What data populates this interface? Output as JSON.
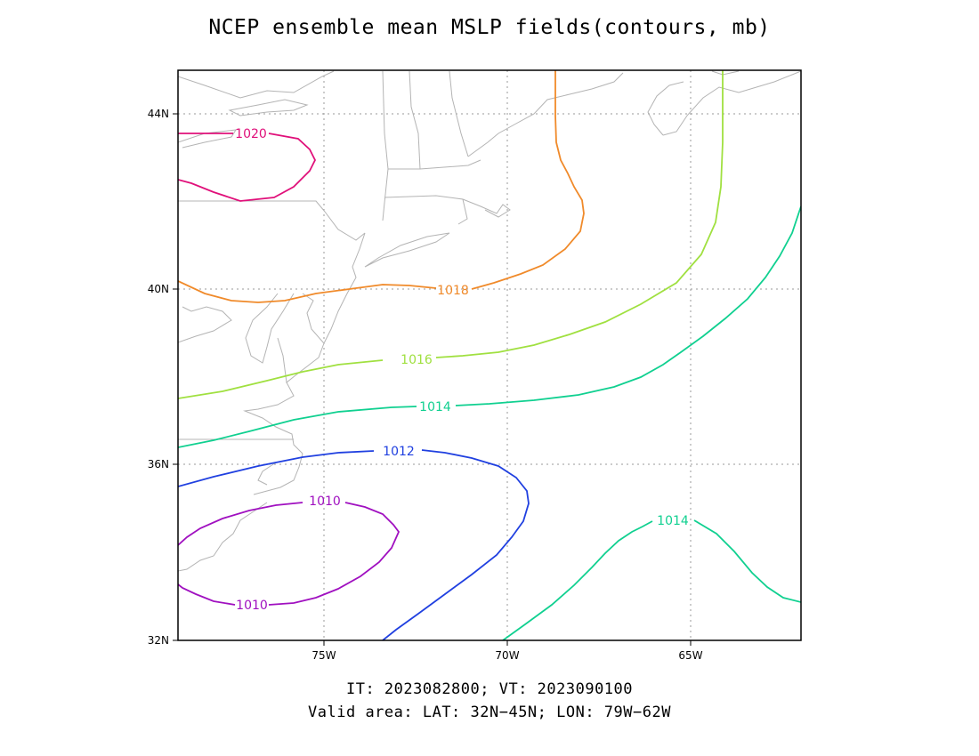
{
  "title": "NCEP ensemble mean MSLP fields(contours, mb)",
  "caption": {
    "line1": "IT: 2023082800; VT: 2023090100",
    "line2": "Valid area: LAT: 32N−45N; LON: 79W−62W"
  },
  "map": {
    "lat_ticks": [
      "32N",
      "36N",
      "40N",
      "44N"
    ],
    "lon_ticks": [
      "75W",
      "70W",
      "65W"
    ],
    "grid": "dotted",
    "coastline_color": "#b4b4b4"
  },
  "contours": [
    {
      "value": 1020,
      "label": "1020",
      "color": "#e0107a"
    },
    {
      "value": 1018,
      "label": "1018",
      "color": "#f08a2a"
    },
    {
      "value": 1016,
      "label": "1016",
      "color": "#a0e040"
    },
    {
      "value": 1014,
      "label": "1014",
      "color": "#10d090"
    },
    {
      "value": 1012,
      "label": "1012",
      "color": "#2040e0"
    },
    {
      "value": 1010,
      "label": "1010",
      "color": "#a010c0"
    },
    {
      "value": 1014,
      "label": "1014",
      "color": "#10d090"
    },
    {
      "value": 1010,
      "label": "1010",
      "color": "#a010c0"
    }
  ]
}
